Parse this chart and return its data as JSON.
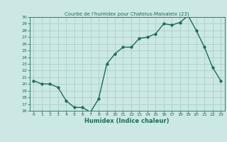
{
  "x": [
    0,
    1,
    2,
    3,
    4,
    5,
    6,
    7,
    8,
    9,
    10,
    11,
    12,
    13,
    14,
    15,
    16,
    17,
    18,
    19,
    20,
    21,
    22,
    23
  ],
  "y": [
    20.5,
    20.0,
    20.0,
    19.5,
    17.5,
    16.5,
    16.5,
    15.8,
    17.8,
    23.0,
    24.5,
    25.5,
    25.5,
    26.8,
    27.0,
    27.5,
    29.0,
    28.8,
    29.2,
    30.2,
    28.0,
    25.5,
    22.5,
    20.5
  ],
  "title": "Courbe de l'humidex pour Chatelus-Malvaleix (23)",
  "xlabel": "Humidex (Indice chaleur)",
  "ylim": [
    16,
    30
  ],
  "xlim": [
    -0.5,
    23.5
  ],
  "yticks": [
    16,
    17,
    18,
    19,
    20,
    21,
    22,
    23,
    24,
    25,
    26,
    27,
    28,
    29,
    30
  ],
  "xticks": [
    0,
    1,
    2,
    3,
    4,
    5,
    6,
    7,
    8,
    9,
    10,
    11,
    12,
    13,
    14,
    15,
    16,
    17,
    18,
    19,
    20,
    21,
    22,
    23
  ],
  "line_color": "#1a6b5a",
  "marker_color": "#1a6b5a",
  "bg_color": "#cce8e4",
  "grid_color": "#aad0cc",
  "title_color": "#1a6b5a",
  "tick_color": "#1a6b5a",
  "xlabel_color": "#1a6b5a"
}
